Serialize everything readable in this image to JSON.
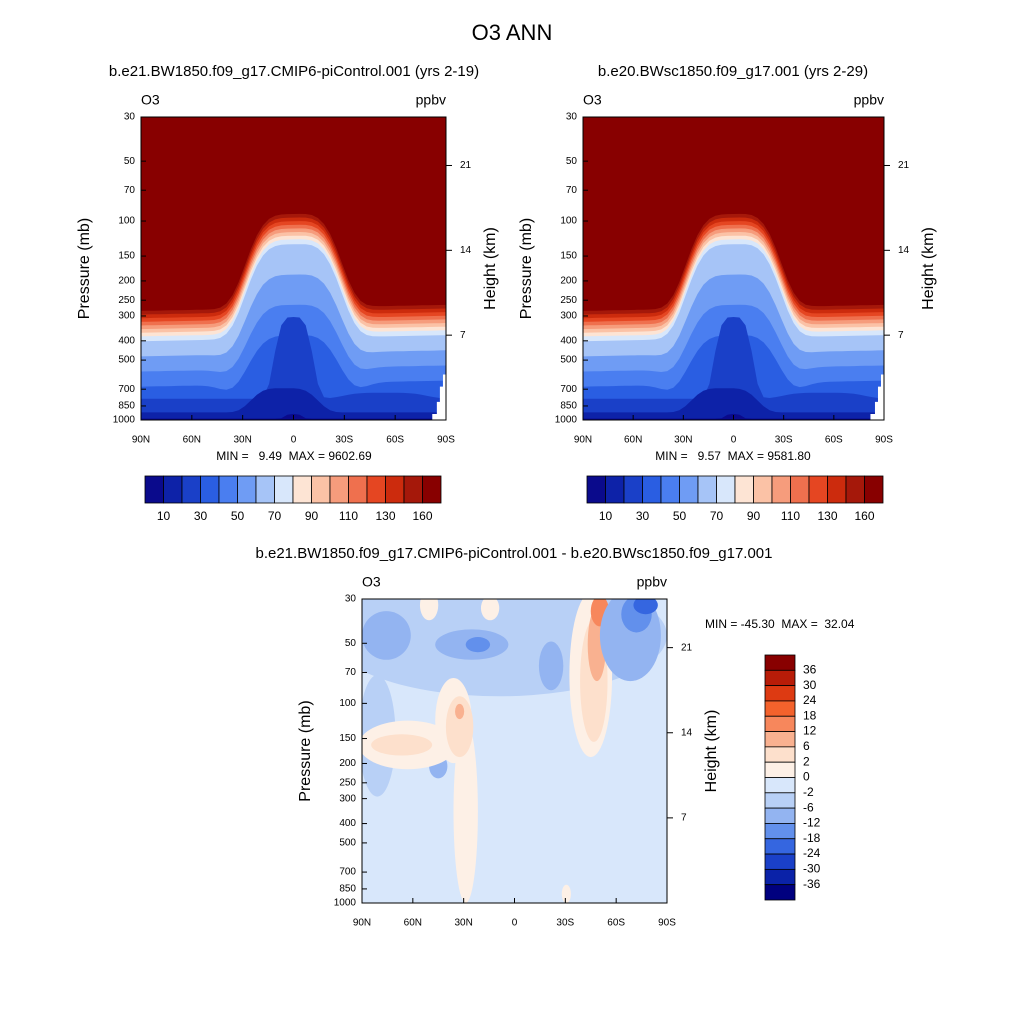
{
  "title": "O3 ANN",
  "chart_data": [
    {
      "type": "contour",
      "title": "b.e21.BW1850.f09_g17.CMIP6-piControl.001 (yrs 2-19)",
      "left_label": "O3",
      "right_label": "ppbv",
      "y_label": "Pressure (mb)",
      "y2_label": "Height (km)",
      "log_y": true,
      "ylim": [
        1000,
        30
      ],
      "yticks": [
        30,
        50,
        70,
        100,
        150,
        200,
        250,
        300,
        400,
        500,
        700,
        850,
        1000
      ],
      "y2lim": [
        0,
        25
      ],
      "y2ticks": [
        7,
        14,
        21
      ],
      "xlim": [
        90,
        -90
      ],
      "xticks": [
        {
          "value": 90,
          "label": "90N"
        },
        {
          "value": 60,
          "label": "60N"
        },
        {
          "value": 30,
          "label": "30N"
        },
        0,
        {
          "value": -30,
          "label": "30S"
        },
        {
          "value": -60,
          "label": "60S"
        },
        {
          "value": -90,
          "label": "90S"
        }
      ],
      "stats": "MIN =   9.49  MAX = 9602.69",
      "colorbar": {
        "orientation": "horizontal",
        "level_labels": [
          10,
          30,
          50,
          70,
          90,
          110,
          130,
          160
        ],
        "colors": [
          "#0a0a8c",
          "#0d22a8",
          "#1a40c8",
          "#2a5ee2",
          "#4a7ef0",
          "#6f9cf4",
          "#a6c4f7",
          "#d8e7fb",
          "#fde4d4",
          "#fbc2a6",
          "#f69c7c",
          "#ef704e",
          "#e54622",
          "#cc2b0d",
          "#a5180a",
          "#880000"
        ]
      }
    },
    {
      "type": "contour",
      "title": "b.e20.BWsc1850.f09_g17.001 (yrs 2-29)",
      "left_label": "O3",
      "right_label": "ppbv",
      "y_label": "Pressure (mb)",
      "y2_label": "Height (km)",
      "log_y": true,
      "ylim": [
        1000,
        30
      ],
      "yticks": [
        30,
        50,
        70,
        100,
        150,
        200,
        250,
        300,
        400,
        500,
        700,
        850,
        1000
      ],
      "y2lim": [
        0,
        25
      ],
      "y2ticks": [
        7,
        14,
        21
      ],
      "xlim": [
        90,
        -90
      ],
      "xticks": [
        {
          "value": 90,
          "label": "90N"
        },
        {
          "value": 60,
          "label": "60N"
        },
        {
          "value": 30,
          "label": "30N"
        },
        0,
        {
          "value": -30,
          "label": "30S"
        },
        {
          "value": -60,
          "label": "60S"
        },
        {
          "value": -90,
          "label": "90S"
        }
      ],
      "stats": "MIN =   9.57  MAX = 9581.80",
      "colorbar": {
        "orientation": "horizontal",
        "level_labels": [
          10,
          30,
          50,
          70,
          90,
          110,
          130,
          160
        ],
        "colors": [
          "#0a0a8c",
          "#0d22a8",
          "#1a40c8",
          "#2a5ee2",
          "#4a7ef0",
          "#6f9cf4",
          "#a6c4f7",
          "#d8e7fb",
          "#fde4d4",
          "#fbc2a6",
          "#f69c7c",
          "#ef704e",
          "#e54622",
          "#cc2b0d",
          "#a5180a",
          "#880000"
        ]
      }
    },
    {
      "type": "contour",
      "title": "b.e21.BW1850.f09_g17.CMIP6-piControl.001 - b.e20.BWsc1850.f09_g17.001",
      "left_label": "O3",
      "right_label": "ppbv",
      "y_label": "Pressure (mb)",
      "y2_label": "Height (km)",
      "log_y": true,
      "ylim": [
        1000,
        30
      ],
      "yticks": [
        30,
        50,
        70,
        100,
        150,
        200,
        250,
        300,
        400,
        500,
        700,
        850,
        1000
      ],
      "y2lim": [
        0,
        25
      ],
      "y2ticks": [
        7,
        14,
        21
      ],
      "xlim": [
        90,
        -90
      ],
      "xticks": [
        {
          "value": 90,
          "label": "90N"
        },
        {
          "value": 60,
          "label": "60N"
        },
        {
          "value": 30,
          "label": "30N"
        },
        0,
        {
          "value": -30,
          "label": "30S"
        },
        {
          "value": -60,
          "label": "60S"
        },
        {
          "value": -90,
          "label": "90S"
        }
      ],
      "stats": "MIN = -45.30  MAX =  32.04",
      "colorbar": {
        "orientation": "vertical",
        "levels": [
          36,
          30,
          24,
          18,
          12,
          6,
          2,
          0,
          -2,
          -6,
          -12,
          -18,
          -24,
          -30,
          -36
        ],
        "colors": [
          "#880000",
          "#b81c08",
          "#dd3a12",
          "#f4622c",
          "#f7875c",
          "#f9b190",
          "#fde0cc",
          "#fdf0e6",
          "#d8e7fb",
          "#b8d0f6",
          "#93b4f1",
          "#6290ec",
          "#3566e0",
          "#1a40c8",
          "#0a22a8",
          "#00007f"
        ]
      }
    }
  ]
}
